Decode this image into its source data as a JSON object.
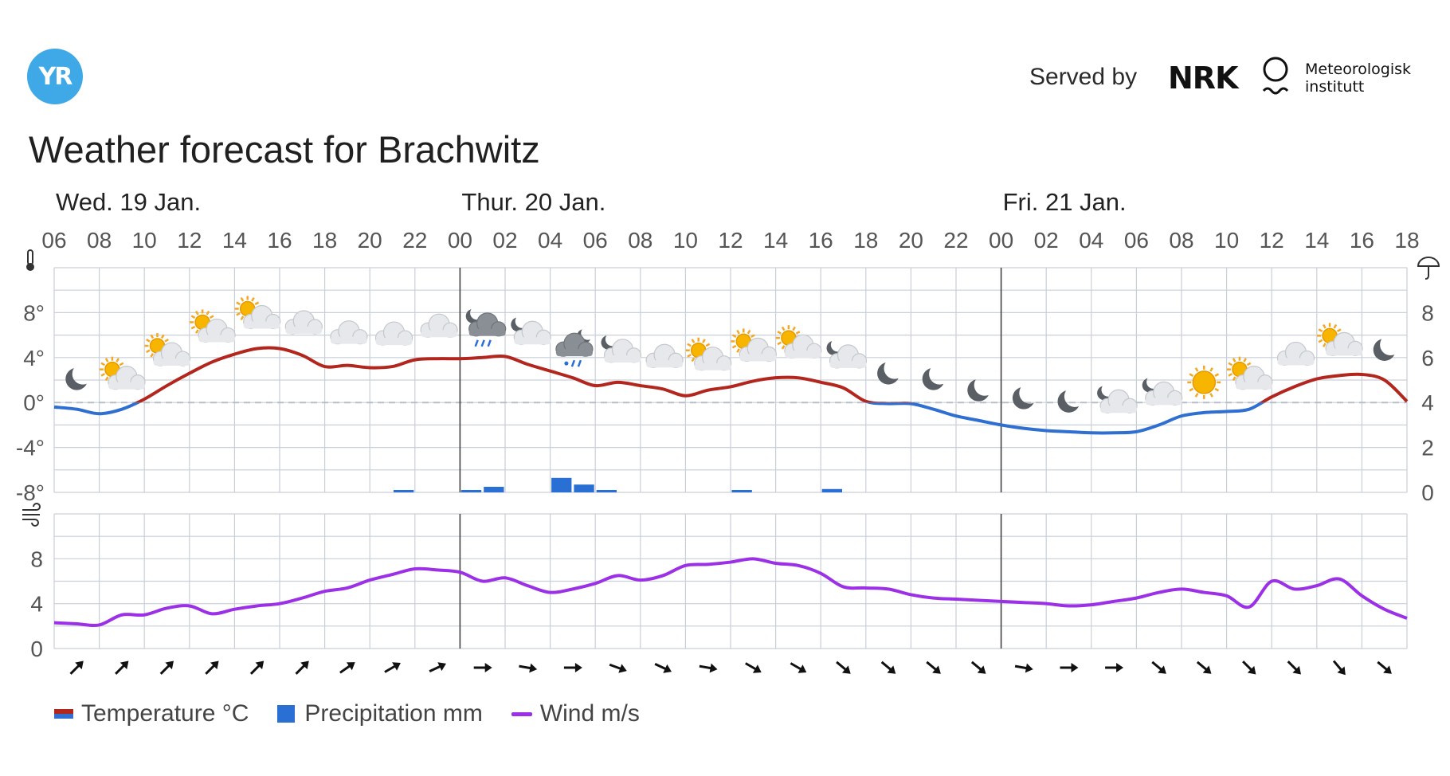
{
  "brand": {
    "logo_text": "YR",
    "served_by": "Served by",
    "nrk": "NRK",
    "met_line1": "Meteorologisk",
    "met_line2": "institutt"
  },
  "title": "Weather forecast for Brachwitz",
  "days": [
    {
      "label": "Wed. 19 Jan.",
      "start_index": 0
    },
    {
      "label": "Thur. 20 Jan.",
      "start_index": 9
    },
    {
      "label": "Fri. 21 Jan.",
      "start_index": 21
    }
  ],
  "colors": {
    "temp_warm": "#b3261e",
    "temp_cold": "#2f6fd1",
    "precip": "#2a6fd4",
    "wind": "#9b30e6",
    "grid": "#c9cfd8"
  },
  "legend": {
    "temperature": "Temperature °C",
    "precipitation": "Precipitation mm",
    "wind": "Wind m/s"
  },
  "chart_data": {
    "type": "line",
    "hours_labels": [
      "06",
      "08",
      "10",
      "12",
      "14",
      "16",
      "18",
      "20",
      "22",
      "00",
      "02",
      "04",
      "06",
      "08",
      "10",
      "12",
      "14",
      "16",
      "18",
      "20",
      "22",
      "00",
      "02",
      "04",
      "06",
      "08",
      "10",
      "12",
      "14",
      "16",
      "18"
    ],
    "temperature": {
      "ylim": [
        -8,
        12
      ],
      "y_ticks": [
        "8°",
        "4°",
        "0°",
        "-4°",
        "-8°"
      ],
      "x_hours": [
        0,
        1,
        2,
        3,
        4,
        5,
        6,
        7,
        8,
        9,
        10,
        11,
        12,
        13,
        14,
        15,
        16,
        17,
        18,
        19,
        20,
        21,
        22,
        23,
        24,
        25,
        26,
        27,
        28,
        29,
        30,
        31,
        32,
        33,
        34,
        35,
        36,
        37,
        38,
        39,
        40,
        41,
        42,
        43,
        44,
        45,
        46,
        47,
        48,
        49,
        50,
        51,
        52,
        53,
        54,
        55,
        56,
        57,
        58,
        59,
        60
      ],
      "values": [
        -0.4,
        -0.6,
        -1.0,
        -0.6,
        0.3,
        1.5,
        2.6,
        3.6,
        4.3,
        4.8,
        4.8,
        4.2,
        3.2,
        3.3,
        3.1,
        3.2,
        3.8,
        3.9,
        3.9,
        4.0,
        4.1,
        3.4,
        2.8,
        2.2,
        1.5,
        1.8,
        1.5,
        1.2,
        0.6,
        1.1,
        1.4,
        1.9,
        2.2,
        2.2,
        1.8,
        1.3,
        0.1,
        -0.1,
        -0.1,
        -0.6,
        -1.2,
        -1.6,
        -2.0,
        -2.3,
        -2.5,
        -2.6,
        -2.7,
        -2.7,
        -2.6,
        -2.0,
        -1.2,
        -0.9,
        -0.8,
        -0.6,
        0.5,
        1.4,
        2.1,
        2.4,
        2.5,
        2.0,
        0.1
      ]
    },
    "precipitation": {
      "y2_ticks": [
        "8",
        "6",
        "4",
        "2",
        "0"
      ],
      "y2lim": [
        0,
        10
      ],
      "bars": [
        {
          "hour": 15.5,
          "value": 0.08
        },
        {
          "hour": 18.5,
          "value": 0.08
        },
        {
          "hour": 19.5,
          "value": 0.25
        },
        {
          "hour": 22.5,
          "value": 0.65
        },
        {
          "hour": 23.5,
          "value": 0.35
        },
        {
          "hour": 24.5,
          "value": 0.08
        },
        {
          "hour": 30.5,
          "value": 0.08
        },
        {
          "hour": 34.5,
          "value": 0.15
        }
      ]
    },
    "wind": {
      "ylim": [
        0,
        12
      ],
      "y_ticks": [
        "8",
        "4",
        "0"
      ],
      "x_hours": [
        0,
        1,
        2,
        3,
        4,
        5,
        6,
        7,
        8,
        9,
        10,
        11,
        12,
        13,
        14,
        15,
        16,
        17,
        18,
        19,
        20,
        21,
        22,
        23,
        24,
        25,
        26,
        27,
        28,
        29,
        30,
        31,
        32,
        33,
        34,
        35,
        36,
        37,
        38,
        39,
        40,
        41,
        42,
        43,
        44,
        45,
        46,
        47,
        48,
        49,
        50,
        51,
        52,
        53,
        54,
        55,
        56,
        57,
        58,
        59,
        60
      ],
      "values": [
        2.3,
        2.2,
        2.1,
        3.0,
        3.0,
        3.6,
        3.8,
        3.1,
        3.5,
        3.8,
        4.0,
        4.5,
        5.1,
        5.4,
        6.1,
        6.6,
        7.1,
        7.0,
        6.8,
        6.0,
        6.3,
        5.6,
        5.0,
        5.3,
        5.8,
        6.5,
        6.1,
        6.5,
        7.4,
        7.5,
        7.7,
        8.0,
        7.6,
        7.4,
        6.7,
        5.5,
        5.4,
        5.3,
        4.8,
        4.5,
        4.4,
        4.3,
        4.2,
        4.1,
        4.0,
        3.8,
        3.9,
        4.2,
        4.5,
        5.0,
        5.3,
        5.0,
        4.7,
        3.7,
        6.0,
        5.3,
        5.6,
        6.2,
        4.7,
        3.5,
        2.7
      ]
    },
    "wind_directions_deg": [
      45,
      45,
      45,
      45,
      45,
      45,
      55,
      60,
      65,
      90,
      100,
      90,
      110,
      115,
      100,
      120,
      120,
      130,
      130,
      130,
      130,
      100,
      90,
      90,
      130,
      130,
      135,
      135,
      140,
      130
    ],
    "weather_icons": [
      "moon",
      "sun-cloud",
      "sun-cloud",
      "sun-cloud",
      "sun-cloud",
      "cloud",
      "cloud",
      "cloud",
      "cloud",
      "moon-cloud-rain",
      "moon-cloud",
      "moon-cloud-sleet",
      "moon-cloud",
      "cloud",
      "sun-cloud",
      "sun-cloud",
      "sun-cloud",
      "moon-cloud",
      "moon",
      "moon",
      "moon",
      "moon",
      "moon",
      "moon-cloud",
      "moon-cloud",
      "sun",
      "sun-cloud",
      "cloud",
      "sun-cloud",
      "moon"
    ]
  }
}
